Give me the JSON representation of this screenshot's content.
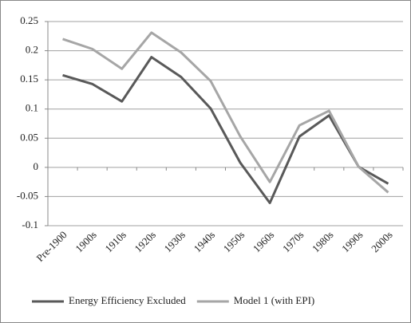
{
  "chart_data": {
    "type": "line",
    "categories": [
      "Pre-1900",
      "1900s",
      "1910s",
      "1920s",
      "1930s",
      "1940s",
      "1950s",
      "1960s",
      "1970s",
      "1980s",
      "1990s",
      "2000s"
    ],
    "series": [
      {
        "name": "Energy Efficiency Excluded",
        "color": "#595959",
        "values": [
          0.158,
          0.143,
          0.113,
          0.189,
          0.155,
          0.101,
          0.008,
          -0.061,
          0.053,
          0.089,
          0.001,
          -0.028
        ]
      },
      {
        "name": "Model 1 (with EPI)",
        "color": "#a6a6a6",
        "values": [
          0.22,
          0.203,
          0.169,
          0.231,
          0.197,
          0.148,
          0.053,
          -0.025,
          0.072,
          0.097,
          0.001,
          -0.043
        ]
      }
    ],
    "ylim": [
      -0.1,
      0.25
    ],
    "yticks": [
      -0.1,
      -0.05,
      0,
      0.05,
      0.1,
      0.15,
      0.2,
      0.25
    ],
    "grid": true,
    "legend": "bottom"
  }
}
